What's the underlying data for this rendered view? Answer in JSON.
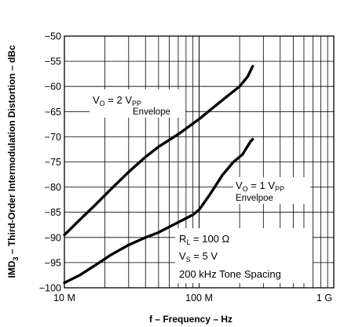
{
  "chart_data": {
    "type": "line",
    "title": "",
    "xlabel": "f – Frequency – Hz",
    "ylabel": "IMD3 – Third-Order Intermodulation Distortion – dBc",
    "ylabel_parts": {
      "pre": "IMD",
      "sub": "3",
      "post": " – Third-Order Intermodulation Distortion – dBc"
    },
    "x_scale": "log",
    "xlim": [
      10000000,
      1000000000
    ],
    "ylim": [
      -100,
      -50
    ],
    "x_ticks": [
      {
        "value": 10000000,
        "label": "10 M"
      },
      {
        "value": 100000000,
        "label": "100 M"
      },
      {
        "value": 1000000000,
        "label": "1 G"
      }
    ],
    "y_ticks": [
      -50,
      -55,
      -60,
      -65,
      -70,
      -75,
      -80,
      -85,
      -90,
      -95,
      -100
    ],
    "y_tick_labels": [
      "−50",
      "−55",
      "−60",
      "−65",
      "−70",
      "−75",
      "−80",
      "−85",
      "−90",
      "−95",
      "−100"
    ],
    "grid": true,
    "series": [
      {
        "name": "VO = 2 VPP Envelope",
        "label_main": "V",
        "label_sub1": "O",
        "label_mid": " = 2 V",
        "label_sub2": "PP",
        "label_line2": "Envelope",
        "x": [
          10000000,
          13000000,
          17000000,
          22000000,
          30000000,
          40000000,
          50000000,
          70000000,
          100000000,
          130000000,
          170000000,
          200000000,
          230000000,
          250000000
        ],
        "y": [
          -89.5,
          -86.5,
          -83.5,
          -80.5,
          -77,
          -74,
          -72,
          -69.5,
          -66.5,
          -64,
          -61.5,
          -60,
          -58,
          -56
        ]
      },
      {
        "name": "VO = 1 VPP Envelpoe",
        "label_main": "V",
        "label_sub1": "O",
        "label_mid": " = 1 V",
        "label_sub2": "PP",
        "label_line2": "Envelpoe",
        "x": [
          10000000,
          13000000,
          17000000,
          22000000,
          30000000,
          40000000,
          50000000,
          70000000,
          90000000,
          100000000,
          120000000,
          150000000,
          180000000,
          210000000,
          240000000,
          250000000
        ],
        "y": [
          -99,
          -97.5,
          -95.5,
          -93.5,
          -91.5,
          -90,
          -89,
          -87,
          -85.5,
          -84.5,
          -81.5,
          -77.5,
          -75,
          -73.5,
          -71,
          -70.5
        ]
      }
    ],
    "annotations": [
      {
        "line1_main": "R",
        "line1_sub": "L",
        "line1_rest": " = 100 Ω"
      },
      {
        "line2_main": "V",
        "line2_sub": "S",
        "line2_rest": " = 5 V"
      },
      {
        "line3": "200 kHz Tone Spacing"
      }
    ]
  }
}
